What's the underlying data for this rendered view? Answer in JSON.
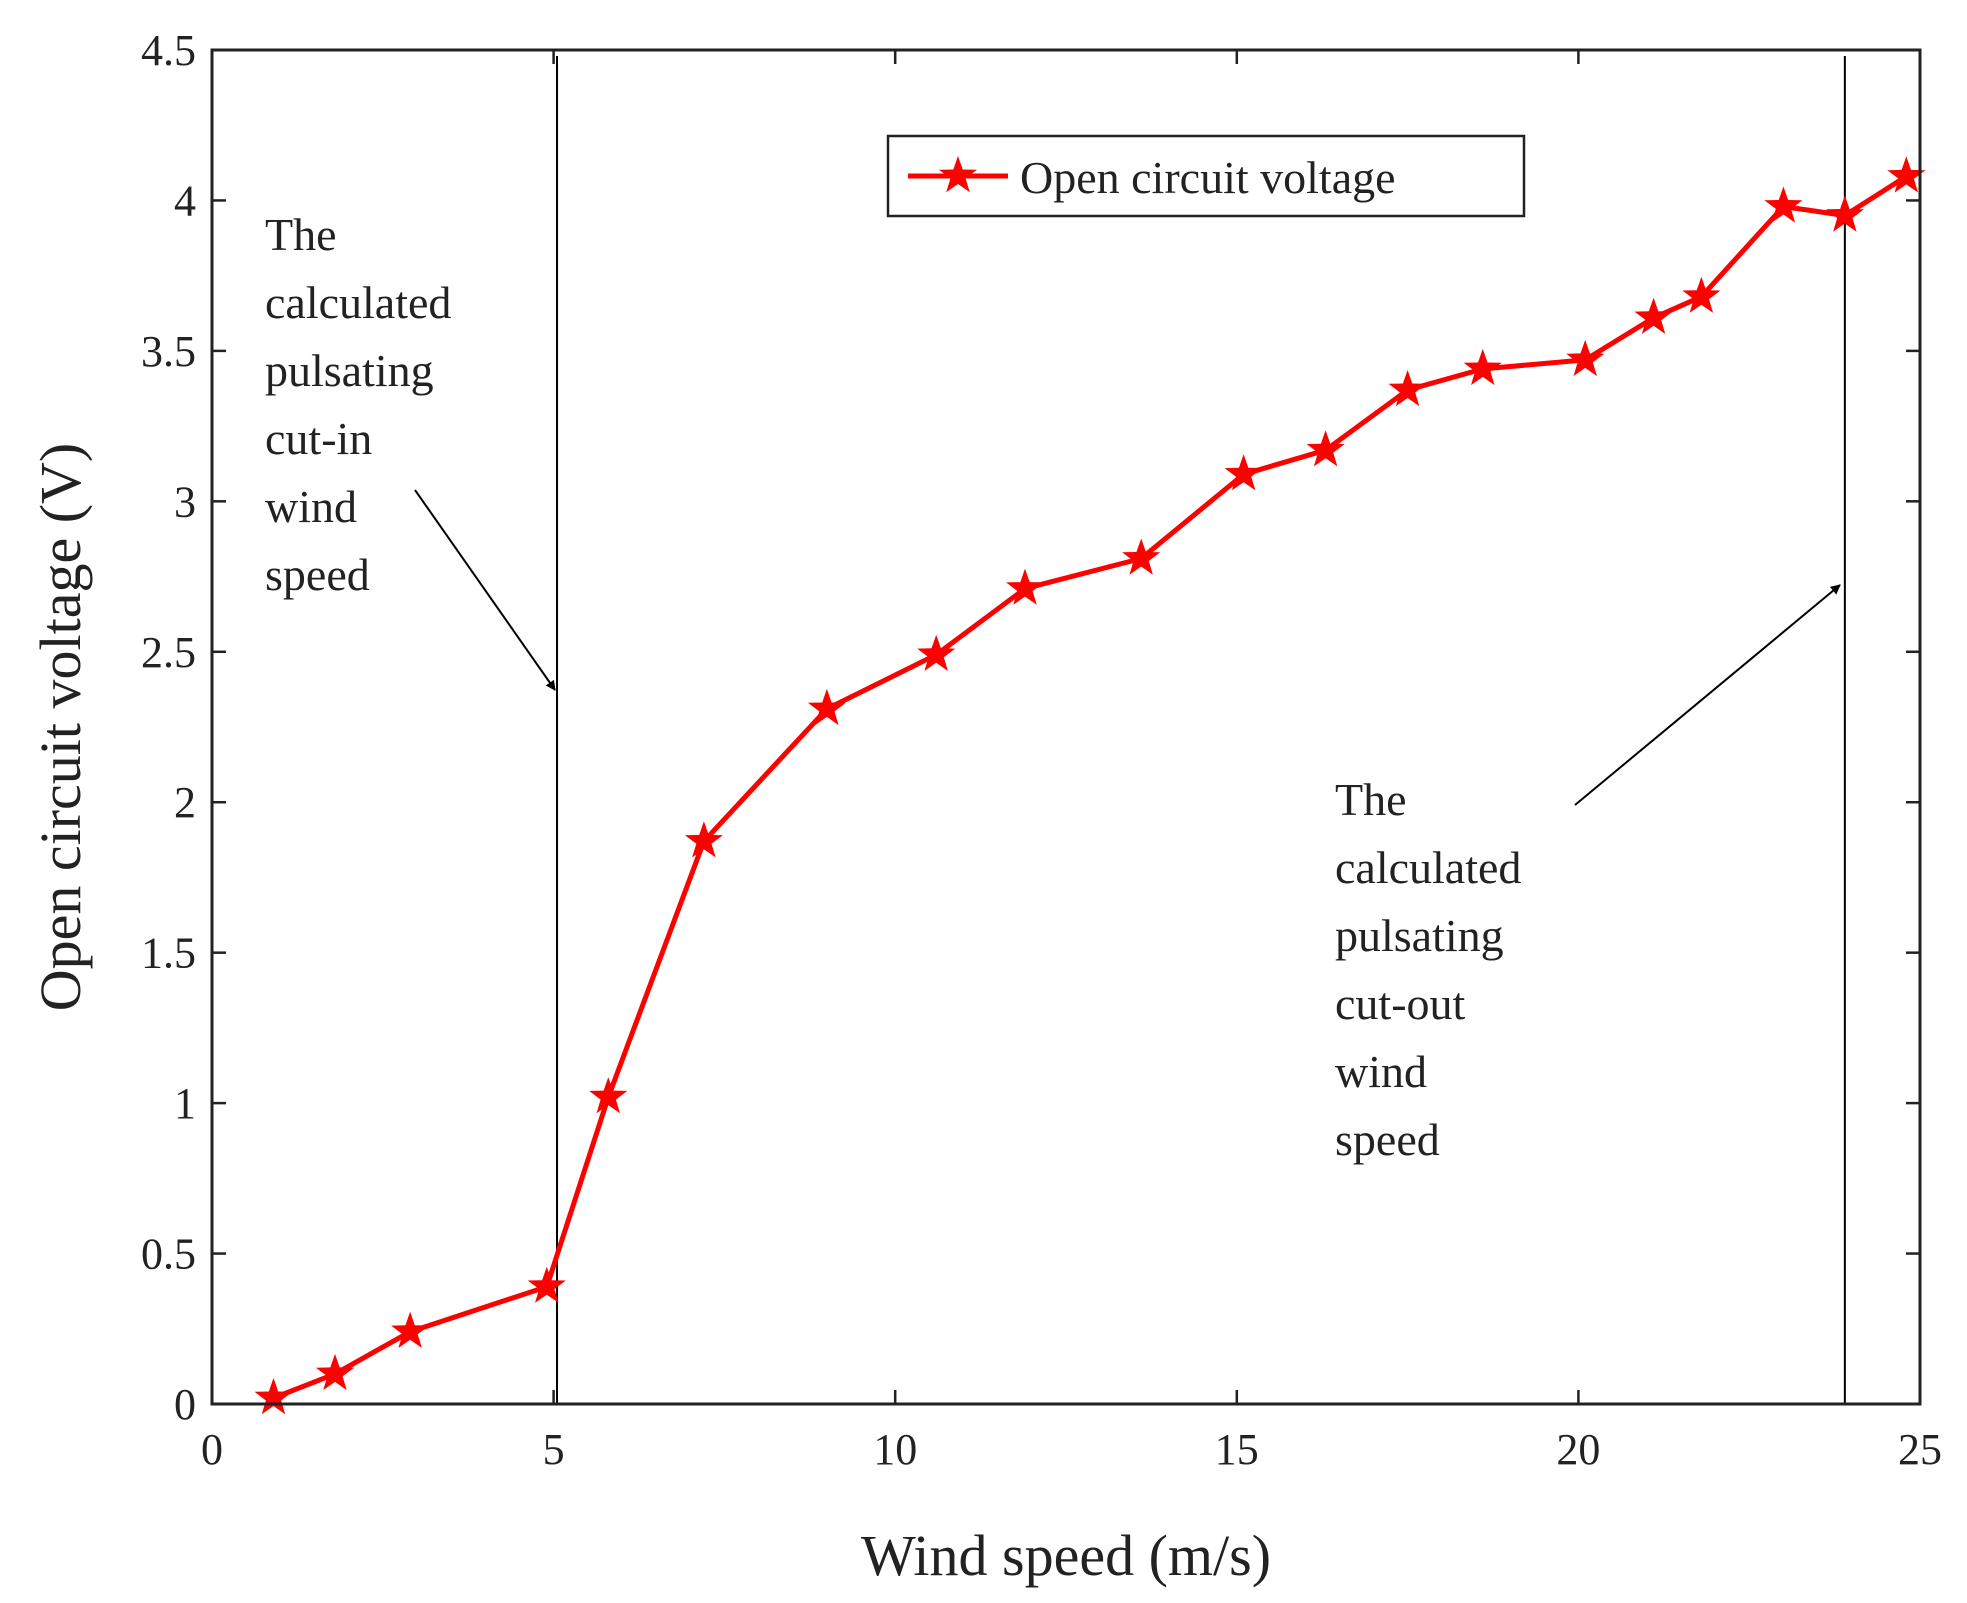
{
  "chart_data": {
    "type": "line",
    "title": "",
    "xlabel": "Wind speed (m/s)",
    "ylabel": "Open circuit voltage (V)",
    "xlim": [
      0,
      25
    ],
    "ylim": [
      0,
      4.5
    ],
    "xticks": [
      0,
      5,
      10,
      15,
      20,
      25
    ],
    "yticks": [
      0,
      0.5,
      1,
      1.5,
      2,
      2.5,
      3,
      3.5,
      4,
      4.5
    ],
    "xtick_labels": [
      "0",
      "5",
      "10",
      "15",
      "20",
      "25"
    ],
    "ytick_labels": [
      "0",
      "0.5",
      "1",
      "1.5",
      "2",
      "2.5",
      "3",
      "3.5",
      "4",
      "4.5"
    ],
    "grid": false,
    "legend_position": "top-center",
    "series": [
      {
        "name": "Open circuit voltage",
        "color": "#ff0000",
        "marker": "star",
        "x": [
          0.9,
          1.8,
          2.9,
          4.9,
          5.8,
          7.2,
          9.0,
          10.6,
          11.9,
          13.6,
          15.1,
          16.3,
          17.5,
          18.6,
          20.1,
          21.1,
          21.8,
          23.0,
          23.9,
          24.8
        ],
        "y": [
          0.02,
          0.1,
          0.24,
          0.39,
          1.02,
          1.87,
          2.31,
          2.49,
          2.71,
          2.81,
          3.09,
          3.17,
          3.37,
          3.44,
          3.47,
          3.61,
          3.68,
          3.98,
          3.95,
          4.08
        ]
      }
    ],
    "reference_lines": [
      {
        "name": "cut-in",
        "x": 5.05
      },
      {
        "name": "cut-out",
        "x": 23.9
      }
    ],
    "annotations": [
      {
        "name": "cut-in",
        "lines": [
          "The",
          "calculated",
          "pulsating",
          "cut-in",
          "wind",
          "speed"
        ]
      },
      {
        "name": "cut-out",
        "lines": [
          "The",
          "calculated",
          "pulsating",
          "cut-out",
          "wind",
          "speed"
        ]
      }
    ]
  }
}
